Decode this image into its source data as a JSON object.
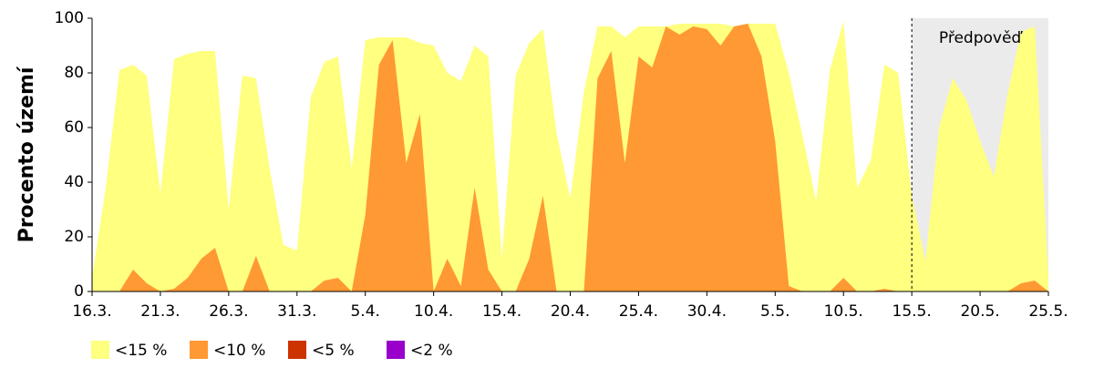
{
  "chart_data": {
    "type": "area",
    "y_label": "Procento území",
    "forecast_label": "Předpověď",
    "forecast_start": 60,
    "categories": [
      "16.3.",
      null,
      null,
      null,
      null,
      "21.3.",
      null,
      null,
      null,
      null,
      "26.3.",
      null,
      null,
      null,
      null,
      "31.3.",
      null,
      null,
      null,
      null,
      "5.4.",
      null,
      null,
      null,
      null,
      "10.4.",
      null,
      null,
      null,
      null,
      "15.4.",
      null,
      null,
      null,
      null,
      "20.4.",
      null,
      null,
      null,
      null,
      "25.4.",
      null,
      null,
      null,
      null,
      "30.4.",
      null,
      null,
      null,
      null,
      "5.5.",
      null,
      null,
      null,
      null,
      "10.5.",
      null,
      null,
      null,
      null,
      "15.5.",
      null,
      null,
      null,
      null,
      "20.5.",
      null,
      null,
      null,
      null,
      "25.5."
    ],
    "series": [
      {
        "name": "<15 %",
        "color": "#ffff80",
        "values": [
          5,
          38,
          81,
          83,
          79,
          36,
          85,
          87,
          88,
          88,
          30,
          79,
          78,
          45,
          17,
          15,
          71,
          84,
          86,
          45,
          92,
          93,
          93,
          93,
          91,
          90,
          80,
          77,
          90,
          86,
          12,
          79,
          91,
          96,
          58,
          34,
          73,
          97,
          97,
          93,
          97,
          97,
          97,
          98,
          98,
          98,
          98,
          97,
          98,
          98,
          98,
          80,
          57,
          33,
          81,
          99,
          38,
          48,
          83,
          80,
          35,
          11,
          60,
          78,
          70,
          55,
          42,
          72,
          95,
          97,
          5
        ]
      },
      {
        "name": "<10 %",
        "color": "#ff9933",
        "values": [
          0,
          0,
          0,
          8,
          3,
          0,
          1,
          5,
          12,
          16,
          0,
          0,
          13,
          0,
          0,
          0,
          0,
          4,
          5,
          0,
          28,
          83,
          92,
          47,
          65,
          0,
          12,
          2,
          38,
          8,
          0,
          0,
          12,
          35,
          0,
          0,
          0,
          78,
          88,
          47,
          86,
          82,
          97,
          94,
          97,
          96,
          90,
          97,
          98,
          86,
          55,
          2,
          0,
          0,
          0,
          5,
          0,
          0,
          1,
          0,
          0,
          0,
          0,
          0,
          0,
          0,
          0,
          0,
          3,
          4,
          0
        ]
      },
      {
        "name": "<5 %",
        "color": "#cc3300",
        "values": [
          0,
          0,
          0,
          0,
          0,
          0,
          0,
          0,
          0,
          0,
          0,
          0,
          0,
          0,
          0,
          0,
          0,
          0,
          0,
          0,
          0,
          0,
          0,
          0,
          0,
          0,
          0,
          0,
          0,
          0,
          0,
          0,
          0,
          0,
          0,
          0,
          0,
          0,
          0,
          0,
          0,
          0,
          0,
          0,
          0,
          0,
          0,
          0,
          0,
          0,
          0,
          0,
          0,
          0,
          0,
          0,
          0,
          0,
          0,
          0,
          0,
          0,
          0,
          0,
          0,
          0,
          0,
          0,
          0,
          0,
          0
        ]
      },
      {
        "name": "<2 %",
        "color": "#9900cc",
        "values": [
          0,
          0,
          0,
          0,
          0,
          0,
          0,
          0,
          0,
          0,
          0,
          0,
          0,
          0,
          0,
          0,
          0,
          0,
          0,
          0,
          0,
          0,
          0,
          0,
          0,
          0,
          0,
          0,
          0,
          0,
          0,
          0,
          0,
          0,
          0,
          0,
          0,
          0,
          0,
          0,
          0,
          0,
          0,
          0,
          0,
          0,
          0,
          0,
          0,
          0,
          0,
          0,
          0,
          0,
          0,
          0,
          0,
          0,
          0,
          0,
          0,
          0,
          0,
          0,
          0,
          0,
          0,
          0,
          0,
          0,
          0
        ]
      }
    ],
    "ylim": [
      0,
      100
    ],
    "yticks": [
      0,
      20,
      40,
      60,
      80,
      100
    ]
  }
}
